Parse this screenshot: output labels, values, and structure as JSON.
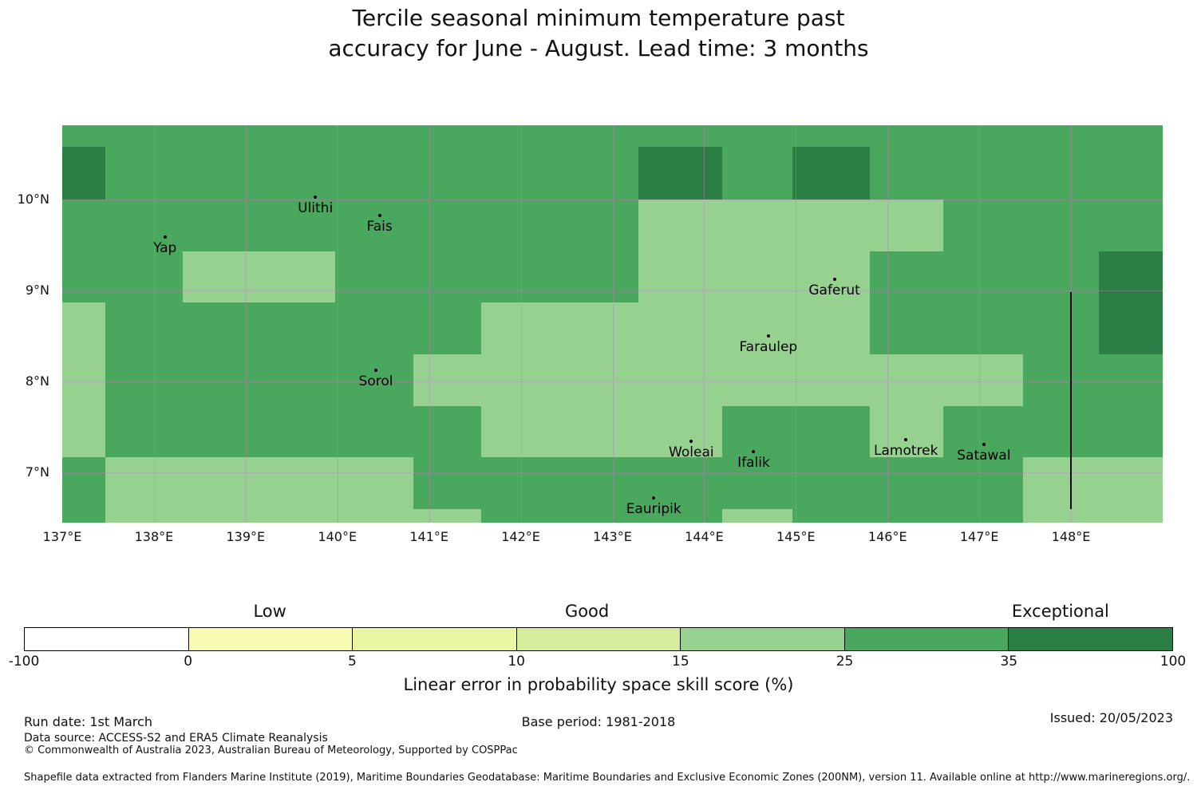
{
  "title": {
    "line1": "Tercile seasonal minimum temperature past",
    "line2": "accuracy for June - August. Lead time: 3 months"
  },
  "chart_data": {
    "type": "heatmap",
    "title": "Tercile seasonal minimum temperature past accuracy for June - August. Lead time: 3 months",
    "proj": {
      "lon_min": 137,
      "lon_max": 149,
      "lat_min": 6.45,
      "lat_max": 10.81
    },
    "x_ticks": [
      {
        "label": "137°E",
        "lon": 137
      },
      {
        "label": "138°E",
        "lon": 138
      },
      {
        "label": "139°E",
        "lon": 139
      },
      {
        "label": "140°E",
        "lon": 140
      },
      {
        "label": "141°E",
        "lon": 141
      },
      {
        "label": "142°E",
        "lon": 142
      },
      {
        "label": "143°E",
        "lon": 143
      },
      {
        "label": "144°E",
        "lon": 144
      },
      {
        "label": "145°E",
        "lon": 145
      },
      {
        "label": "146°E",
        "lon": 146
      },
      {
        "label": "147°E",
        "lon": 147
      },
      {
        "label": "148°E",
        "lon": 148
      }
    ],
    "y_ticks": [
      {
        "label": "10°N",
        "lat": 10
      },
      {
        "label": "9°N",
        "lat": 9
      },
      {
        "label": "8°N",
        "lat": 8
      },
      {
        "label": "7°N",
        "lat": 7
      }
    ],
    "bins": [
      {
        "range": "-100-0",
        "color": "#ffffff"
      },
      {
        "range": "0-5",
        "color": "#f7fbb4"
      },
      {
        "range": "5-10",
        "color": "#eaf6a4"
      },
      {
        "range": "10-15",
        "color": "#d5ec9f"
      },
      {
        "range": "15-25",
        "color": "#96d190"
      },
      {
        "range": "25-35",
        "color": "#4aa75e"
      },
      {
        "range": "35-100",
        "color": "#2b7e44"
      }
    ],
    "base_bin": "25-35",
    "patches": [
      {
        "bin": "35-100",
        "lon": [
          137.0,
          137.47
        ],
        "lat": [
          10.0,
          10.57
        ]
      },
      {
        "bin": "35-100",
        "lon": [
          143.28,
          144.2
        ],
        "lat": [
          10.0,
          10.57
        ]
      },
      {
        "bin": "35-100",
        "lon": [
          144.96,
          145.81
        ],
        "lat": [
          10.0,
          10.57
        ]
      },
      {
        "bin": "35-100",
        "lon": [
          148.3,
          149.0
        ],
        "lat": [
          8.3,
          9.43
        ]
      },
      {
        "bin": "15-25",
        "lon": [
          143.28,
          146.61
        ],
        "lat": [
          9.43,
          10.0
        ]
      },
      {
        "bin": "15-25",
        "lon": [
          143.28,
          145.81
        ],
        "lat": [
          8.87,
          9.43
        ]
      },
      {
        "bin": "15-25",
        "lon": [
          138.31,
          139.98
        ],
        "lat": [
          8.87,
          9.43
        ]
      },
      {
        "bin": "15-25",
        "lon": [
          141.57,
          145.81
        ],
        "lat": [
          8.3,
          8.87
        ]
      },
      {
        "bin": "15-25",
        "lon": [
          140.83,
          147.48
        ],
        "lat": [
          7.73,
          8.3
        ]
      },
      {
        "bin": "15-25",
        "lon": [
          137.0,
          137.47
        ],
        "lat": [
          7.17,
          8.87
        ]
      },
      {
        "bin": "15-25",
        "lon": [
          141.57,
          144.2
        ],
        "lat": [
          7.17,
          7.73
        ]
      },
      {
        "bin": "15-25",
        "lon": [
          145.81,
          146.61
        ],
        "lat": [
          7.17,
          7.73
        ]
      },
      {
        "bin": "15-25",
        "lon": [
          137.47,
          140.83
        ],
        "lat": [
          6.6,
          7.17
        ]
      },
      {
        "bin": "15-25",
        "lon": [
          137.47,
          141.57
        ],
        "lat": [
          6.45,
          6.6
        ]
      },
      {
        "bin": "15-25",
        "lon": [
          144.2,
          144.96
        ],
        "lat": [
          6.45,
          6.6
        ]
      },
      {
        "bin": "15-25",
        "lon": [
          147.48,
          149.0
        ],
        "lat": [
          6.45,
          7.17
        ]
      }
    ],
    "boundary_line": {
      "lon": 148.0,
      "lat_from": 6.6,
      "lat_to": 8.98
    },
    "islands": [
      {
        "name": "Yap",
        "lon": 138.12,
        "lat": 9.58
      },
      {
        "name": "Ulithi",
        "lon": 139.76,
        "lat": 10.02
      },
      {
        "name": "Fais",
        "lon": 140.46,
        "lat": 9.82
      },
      {
        "name": "Gaferut",
        "lon": 145.42,
        "lat": 9.12
      },
      {
        "name": "Faraulep",
        "lon": 144.7,
        "lat": 8.5
      },
      {
        "name": "Sorol",
        "lon": 140.42,
        "lat": 8.12
      },
      {
        "name": "Woleai",
        "lon": 143.86,
        "lat": 7.34
      },
      {
        "name": "Ifalik",
        "lon": 144.54,
        "lat": 7.23
      },
      {
        "name": "Lamotrek",
        "lon": 146.2,
        "lat": 7.36
      },
      {
        "name": "Satawal",
        "lon": 147.05,
        "lat": 7.31
      },
      {
        "name": "Eauripik",
        "lon": 143.45,
        "lat": 6.72
      }
    ],
    "colorbar": {
      "tick_labels": [
        "-100",
        "0",
        "5",
        "10",
        "15",
        "25",
        "35",
        "100"
      ],
      "category_labels": [
        {
          "text": "Low",
          "position_pct": 21.4
        },
        {
          "text": "Good",
          "position_pct": 49.0
        },
        {
          "text": "Exceptional",
          "position_pct": 90.2
        }
      ],
      "axis_title": "Linear error in probability space skill score (%)"
    }
  },
  "footer": {
    "run_date": "Run date: 1st March",
    "base_period": "Base period: 1981-2018",
    "issued": "Issued: 20/05/2023",
    "data_source": "Data source: ACCESS-S2 and ERA5 Climate Reanalysis",
    "copyright": "© Commonwealth of Australia 2023, Australian Bureau of Meteorology, Supported by COSPPac",
    "shapefile": "Shapefile data extracted from Flanders Marine Institute (2019), Maritime Boundaries Geodatabase: Maritime Boundaries and Exclusive Economic Zones (200NM), version 11. Available online at http://www.marineregions.org/."
  }
}
